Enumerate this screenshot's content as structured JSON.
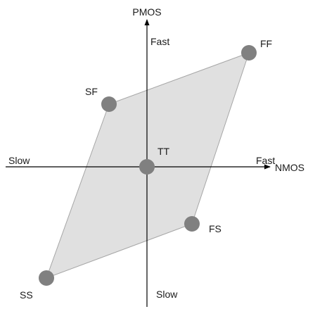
{
  "axes": {
    "vertical_label": "PMOS",
    "horizontal_label": "NMOS",
    "top_label": "Fast",
    "bottom_label": "Slow",
    "left_label": "Slow",
    "right_label": "Fast"
  },
  "corners": {
    "ff": "FF",
    "sf": "SF",
    "tt": "TT",
    "fs": "FS",
    "ss": "SS"
  },
  "colors": {
    "region_fill": "#e0e0e0",
    "region_stroke": "#a6a6a6",
    "dot_fill": "#808080",
    "axis": "#000000"
  }
}
